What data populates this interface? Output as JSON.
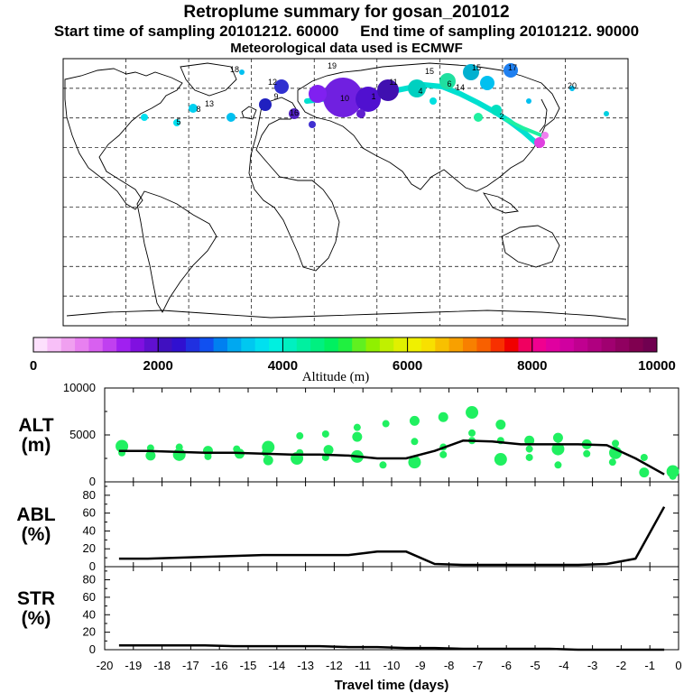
{
  "header": {
    "title": "Retroplume summary for gosan_201012",
    "line2": "Start time of sampling 20101212. 60000     End time of sampling 20101212. 90000",
    "line3": "Meteorological data used is ECMWF"
  },
  "colorbar": {
    "label": "Altitude (m)",
    "min": 0,
    "max": 10000,
    "tick_labels": [
      "0",
      "2000",
      "4000",
      "6000",
      "8000",
      "10000"
    ],
    "colors": [
      "#fde0fd",
      "#f8c0f8",
      "#f0a0f0",
      "#e880f0",
      "#d860f0",
      "#c040f0",
      "#a020f0",
      "#8010e0",
      "#6010d0",
      "#4010c0",
      "#3010d0",
      "#2030e0",
      "#1050f0",
      "#0080f0",
      "#00a8f0",
      "#00c8f0",
      "#00e0f0",
      "#00f0e0",
      "#00f0c0",
      "#00f0a0",
      "#00f080",
      "#00f060",
      "#20f040",
      "#60f020",
      "#90f000",
      "#c0f000",
      "#e0f000",
      "#f0f000",
      "#f8e000",
      "#f8c000",
      "#f8a000",
      "#f88000",
      "#f86000",
      "#f83000",
      "#f00000",
      "#f00060",
      "#f00090",
      "#e000a0",
      "#d000a0",
      "#c00090",
      "#b00080",
      "#a00070",
      "#900060",
      "#800050",
      "#700050"
    ]
  },
  "map": {
    "labels": [
      "19",
      "15",
      "15",
      "17",
      "12",
      "11",
      "10",
      "4",
      "6",
      "1",
      "18",
      "16",
      "13",
      "14",
      "20",
      "8",
      "2",
      "5",
      "9"
    ]
  },
  "chart_data": [
    {
      "type": "scatter",
      "panel_label": "ALT",
      "panel_unit": "(m)",
      "ylim": [
        0,
        10000
      ],
      "ytick_labels": [
        "10000",
        "5000",
        "0"
      ],
      "series": [
        {
          "name": "mean altitude",
          "x": [
            -19.5,
            -18.5,
            -17.5,
            -16.5,
            -15.5,
            -14.5,
            -13.5,
            -12.5,
            -11.5,
            -10.5,
            -9.5,
            -8.5,
            -7.5,
            -6.5,
            -5.5,
            -4.5,
            -3.5,
            -2.5,
            -1.5,
            -0.5
          ],
          "y": [
            3300,
            3300,
            3200,
            3100,
            3100,
            3000,
            2900,
            2900,
            2800,
            2500,
            2500,
            3300,
            4400,
            4300,
            4000,
            4000,
            4000,
            3900,
            2500,
            800
          ]
        }
      ],
      "points": [
        {
          "x": -19.4,
          "y": 3800
        },
        {
          "x": -19.4,
          "y": 3100
        },
        {
          "x": -18.4,
          "y": 3600
        },
        {
          "x": -18.4,
          "y": 2800
        },
        {
          "x": -17.4,
          "y": 3700
        },
        {
          "x": -17.4,
          "y": 2900
        },
        {
          "x": -16.4,
          "y": 3300
        },
        {
          "x": -16.4,
          "y": 2700
        },
        {
          "x": -15.4,
          "y": 3500
        },
        {
          "x": -15.3,
          "y": 3000
        },
        {
          "x": -14.3,
          "y": 3700
        },
        {
          "x": -14.4,
          "y": 3100
        },
        {
          "x": -14.3,
          "y": 2300
        },
        {
          "x": -13.2,
          "y": 4900
        },
        {
          "x": -13.2,
          "y": 3100
        },
        {
          "x": -13.3,
          "y": 2500
        },
        {
          "x": -12.3,
          "y": 5100
        },
        {
          "x": -12.3,
          "y": 2600
        },
        {
          "x": -12.2,
          "y": 3400
        },
        {
          "x": -11.2,
          "y": 5800
        },
        {
          "x": -11.2,
          "y": 2700
        },
        {
          "x": -11.2,
          "y": 4800
        },
        {
          "x": -10.2,
          "y": 6200
        },
        {
          "x": -10.3,
          "y": 1800
        },
        {
          "x": -9.2,
          "y": 6500
        },
        {
          "x": -9.2,
          "y": 2100
        },
        {
          "x": -9.2,
          "y": 4300
        },
        {
          "x": -8.2,
          "y": 6900
        },
        {
          "x": -8.2,
          "y": 2900
        },
        {
          "x": -8.2,
          "y": 3700
        },
        {
          "x": -7.2,
          "y": 7400
        },
        {
          "x": -7.2,
          "y": 4400
        },
        {
          "x": -7.2,
          "y": 5200
        },
        {
          "x": -6.2,
          "y": 6100
        },
        {
          "x": -6.2,
          "y": 4400
        },
        {
          "x": -6.2,
          "y": 2400
        },
        {
          "x": -5.2,
          "y": 4400
        },
        {
          "x": -5.2,
          "y": 3500
        },
        {
          "x": -5.2,
          "y": 2600
        },
        {
          "x": -4.2,
          "y": 4700
        },
        {
          "x": -4.2,
          "y": 3500
        },
        {
          "x": -4.2,
          "y": 1800
        },
        {
          "x": -3.2,
          "y": 4000
        },
        {
          "x": -3.2,
          "y": 3000
        },
        {
          "x": -2.2,
          "y": 4100
        },
        {
          "x": -2.2,
          "y": 3100
        },
        {
          "x": -2.3,
          "y": 2100
        },
        {
          "x": -1.2,
          "y": 2600
        },
        {
          "x": -1.2,
          "y": 1000
        },
        {
          "x": -0.2,
          "y": 600
        },
        {
          "x": -0.2,
          "y": 1100
        }
      ],
      "point_color": "#20f060"
    },
    {
      "type": "line",
      "panel_label": "ABL",
      "panel_unit": "(%)",
      "ylim": [
        0,
        95
      ],
      "ytick_labels": [
        "80",
        "60",
        "40",
        "20",
        "0"
      ],
      "series": [
        {
          "name": "ABL fraction",
          "x": [
            -19.5,
            -18.5,
            -17.5,
            -16.5,
            -15.5,
            -14.5,
            -13.5,
            -12.5,
            -11.5,
            -10.5,
            -9.5,
            -8.5,
            -7.5,
            -6.5,
            -5.5,
            -4.5,
            -3.5,
            -2.5,
            -1.5,
            -0.5
          ],
          "y": [
            9,
            9,
            10,
            11,
            12,
            13,
            13,
            13,
            13,
            17,
            17,
            3,
            2,
            2,
            2,
            2,
            2,
            3,
            9,
            67
          ]
        }
      ]
    },
    {
      "type": "line",
      "panel_label": "STR",
      "panel_unit": "(%)",
      "ylim": [
        0,
        95
      ],
      "ytick_labels": [
        "80",
        "60",
        "40",
        "20",
        "0"
      ],
      "series": [
        {
          "name": "stratospheric fraction",
          "x": [
            -19.5,
            -18.5,
            -17.5,
            -16.5,
            -15.5,
            -14.5,
            -13.5,
            -12.5,
            -11.5,
            -10.5,
            -9.5,
            -8.5,
            -7.5,
            -6.5,
            -5.5,
            -4.5,
            -3.5,
            -2.5,
            -1.5,
            -0.5
          ],
          "y": [
            5,
            5,
            5,
            5,
            4,
            4,
            4,
            4,
            3,
            3,
            2,
            2,
            1,
            1,
            1,
            1,
            0,
            0,
            0,
            0
          ]
        }
      ],
      "xlim": [
        -20,
        0
      ],
      "xtick_labels": [
        "-20",
        "-19",
        "-18",
        "-17",
        "-16",
        "-15",
        "-14",
        "-13",
        "-12",
        "-11",
        "-10",
        "-9",
        "-8",
        "-7",
        "-6",
        "-5",
        "-4",
        "-3",
        "-2",
        "-1",
        "0"
      ],
      "xlabel": "Travel time (days)"
    }
  ]
}
